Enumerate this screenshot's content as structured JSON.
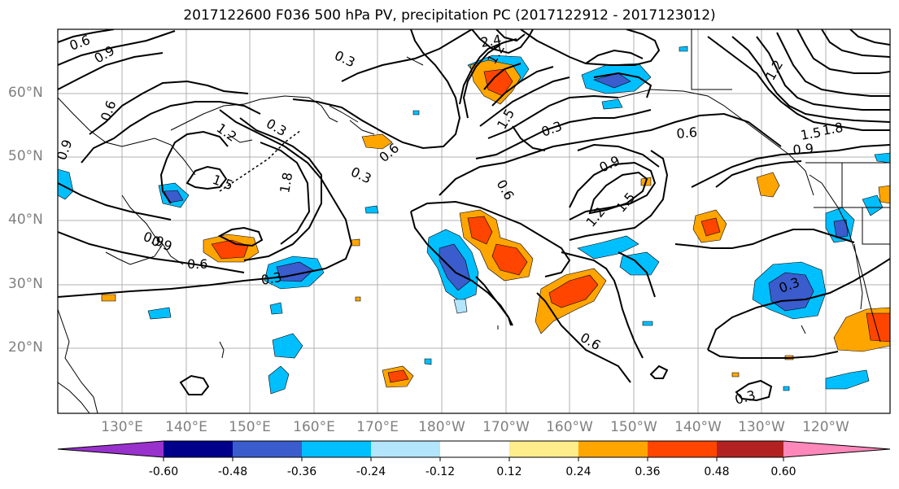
{
  "title": "2017122600 F036 500 hPa PV, precipitation PC (2017122912 - 2017123012)",
  "latitude_labels": [
    "60°N",
    "50°N",
    "40°N",
    "30°N",
    "20°N"
  ],
  "longitude_labels": [
    "130°E",
    "140°E",
    "150°E",
    "160°E",
    "170°E",
    "180°W",
    "170°W",
    "160°W",
    "150°W",
    "140°W",
    "130°W",
    "120°W"
  ],
  "colorbar": {
    "tick_labels": [
      "-0.60",
      "-0.48",
      "-0.36",
      "-0.24",
      "-0.12",
      "0.12",
      "0.24",
      "0.36",
      "0.48",
      "0.60"
    ],
    "colors": [
      "#9932cc",
      "#00008b",
      "#3a5ccc",
      "#00bfff",
      "#b3e5fc",
      "#ffffff",
      "#ffec8b",
      "#ffa500",
      "#ff4500",
      "#b22222",
      "#ff88bb"
    ]
  },
  "pv_contour_labels": [
    "0.6",
    "0.9",
    "0.3",
    "1.2",
    "1.5",
    "1.8",
    "2.4",
    "0.6",
    "0.3",
    "0.9",
    "0.6",
    "0.9",
    "0.3",
    "1.2",
    "1.5",
    "0.6",
    "0.3",
    "0.6",
    "0.3",
    "0.6",
    "0.9",
    "1.2",
    "1.8",
    "1.5",
    "0.9",
    "1.2",
    "0.3",
    "0.6",
    "0.9",
    "1.5",
    "0.3"
  ]
}
